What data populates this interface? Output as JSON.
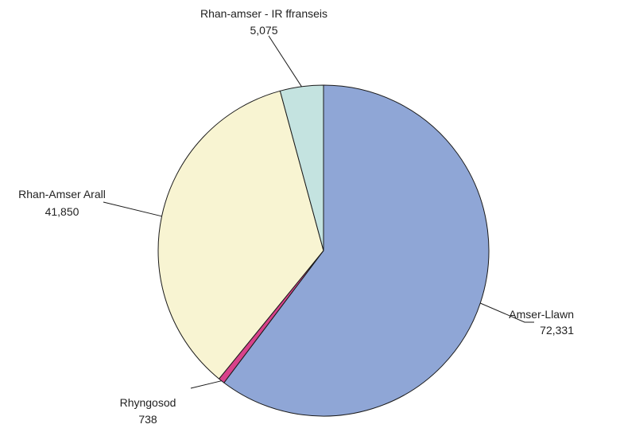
{
  "chart_data": {
    "type": "pie",
    "title": "",
    "legend": "none",
    "slices": [
      {
        "label": "Amser-Llawn",
        "value": 72331,
        "display": "72,331",
        "color": "#8FA6D6"
      },
      {
        "label": "Rhyngosod",
        "value": 738,
        "display": "738",
        "color": "#D8428A"
      },
      {
        "label": "Rhan-Amser Arall",
        "value": 41850,
        "display": "41,850",
        "color": "#F8F4D2"
      },
      {
        "label": "Rhan-amser - IR ffranseis",
        "value": 5075,
        "display": "5,075",
        "color": "#C4E3E0"
      }
    ]
  }
}
